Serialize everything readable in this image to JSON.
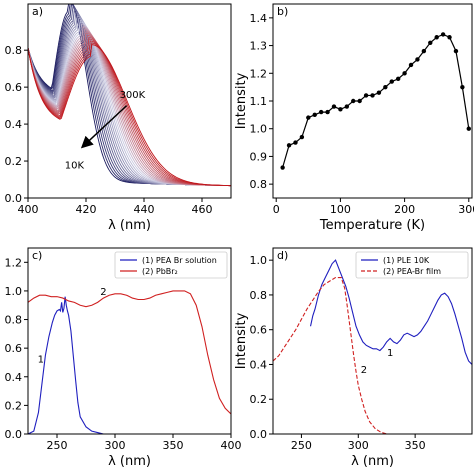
{
  "figure": {
    "background": "#ffffff"
  },
  "chart_data": [
    {
      "panel": "a)",
      "type": "line",
      "xlabel": "λ (nm)",
      "ylabel": "",
      "xlim": [
        400,
        470
      ],
      "ylim": [
        0,
        1.05
      ],
      "xticks": [
        400,
        420,
        440,
        460
      ],
      "yticks": [
        0.0,
        0.2,
        0.4,
        0.6,
        0.8
      ],
      "ytick_labels": [
        "0.0",
        "0.2",
        "0.4",
        "0.6",
        "0.8"
      ],
      "colors": {
        "cold": "#1a1a5e",
        "mid": "#c8c8e0",
        "hot": "#c0151a"
      },
      "series_count": 25,
      "peak_low_temperature": {
        "x": 414,
        "y": 0.98
      },
      "peak_high_temperature": {
        "x": 422,
        "y": 0.74
      },
      "annotations": [
        {
          "text": "300K",
          "x": 436,
          "y": 0.54
        },
        {
          "text": "10K",
          "x": 416,
          "y": 0.16
        }
      ],
      "arrow": {
        "from": {
          "x": 434,
          "y": 0.5
        },
        "to": {
          "x": 419,
          "y": 0.28
        }
      }
    },
    {
      "panel": "b)",
      "type": "line",
      "xlabel": "Temperature (K)",
      "ylabel": "Intensity",
      "xlim": [
        -5,
        305
      ],
      "ylim": [
        0.75,
        1.45
      ],
      "xticks": [
        0,
        100,
        200,
        300
      ],
      "yticks": [
        0.8,
        0.9,
        1.0,
        1.1,
        1.2,
        1.3,
        1.4
      ],
      "ytick_labels": [
        "0.8",
        "0.9",
        "1.0",
        "1.1",
        "1.2",
        "1.3",
        "1.4"
      ],
      "color": "#000000",
      "x": [
        10,
        20,
        30,
        40,
        50,
        60,
        70,
        80,
        90,
        100,
        110,
        120,
        130,
        140,
        150,
        160,
        170,
        180,
        190,
        200,
        210,
        220,
        230,
        240,
        250,
        260,
        270,
        280,
        290,
        300
      ],
      "y": [
        0.86,
        0.94,
        0.95,
        0.97,
        1.04,
        1.05,
        1.06,
        1.06,
        1.08,
        1.07,
        1.08,
        1.1,
        1.1,
        1.12,
        1.12,
        1.13,
        1.15,
        1.17,
        1.18,
        1.2,
        1.23,
        1.25,
        1.28,
        1.31,
        1.33,
        1.34,
        1.33,
        1.28,
        1.15,
        1.0
      ]
    },
    {
      "panel": "c)",
      "type": "line",
      "xlabel": "λ (nm)",
      "ylabel": "",
      "xlim": [
        225,
        400
      ],
      "ylim": [
        0,
        1.3
      ],
      "xticks": [
        250,
        300,
        350,
        400
      ],
      "yticks": [
        0.0,
        0.2,
        0.4,
        0.6,
        0.8,
        1.0,
        1.2
      ],
      "ytick_labels": [
        "0.0",
        "0.2",
        "0.4",
        "0.6",
        "0.8",
        "1.0",
        "1.2"
      ],
      "legend_position": "top-right",
      "series": [
        {
          "name": "(1) PEA Br solution",
          "curve_label": "1",
          "color": "#1f1fbf",
          "label_position": {
            "x": 236,
            "y": 0.5
          },
          "x": [
            225,
            230,
            234,
            237,
            240,
            243,
            246,
            248,
            250,
            252,
            253,
            254,
            255,
            256,
            257,
            258,
            259,
            260,
            262,
            264,
            266,
            268,
            270,
            275,
            280,
            285,
            290,
            300,
            320,
            340,
            360,
            380,
            400
          ],
          "y": [
            0.0,
            0.02,
            0.15,
            0.35,
            0.55,
            0.68,
            0.78,
            0.83,
            0.86,
            0.87,
            0.86,
            0.92,
            0.85,
            0.88,
            0.96,
            0.9,
            0.86,
            0.83,
            0.72,
            0.55,
            0.38,
            0.22,
            0.12,
            0.05,
            0.02,
            0.01,
            0.0,
            0.0,
            0.0,
            0.0,
            0.0,
            0.0,
            0.0
          ]
        },
        {
          "name": "(2) PbBr₂",
          "curve_label": "2",
          "color": "#d02020",
          "label_position": {
            "x": 290,
            "y": 0.97
          },
          "x": [
            225,
            230,
            235,
            240,
            245,
            250,
            255,
            260,
            265,
            270,
            275,
            280,
            285,
            290,
            295,
            300,
            305,
            310,
            315,
            320,
            325,
            330,
            335,
            340,
            345,
            350,
            355,
            360,
            365,
            370,
            375,
            380,
            385,
            390,
            395,
            400
          ],
          "y": [
            0.92,
            0.95,
            0.97,
            0.97,
            0.96,
            0.96,
            0.95,
            0.93,
            0.92,
            0.9,
            0.89,
            0.9,
            0.92,
            0.95,
            0.97,
            0.98,
            0.98,
            0.97,
            0.95,
            0.94,
            0.94,
            0.95,
            0.97,
            0.98,
            0.99,
            1.0,
            1.0,
            1.0,
            0.98,
            0.9,
            0.75,
            0.55,
            0.38,
            0.25,
            0.18,
            0.14
          ]
        }
      ]
    },
    {
      "panel": "d)",
      "type": "line",
      "xlabel": "λ (nm)",
      "ylabel": "Intensity",
      "xlim": [
        225,
        400
      ],
      "ylim": [
        0,
        1.07
      ],
      "xticks": [
        250,
        300,
        350
      ],
      "yticks": [
        0.0,
        0.2,
        0.4,
        0.6,
        0.8,
        1.0
      ],
      "ytick_labels": [
        "0.0",
        "0.2",
        "0.4",
        "0.6",
        "0.8",
        "1.0"
      ],
      "legend_position": "top-right",
      "series": [
        {
          "name": "(1) PLE 10K",
          "curve_label": "1",
          "color": "#1f1fbf",
          "line_style": "solid",
          "label_position": {
            "x": 328,
            "y": 0.45
          },
          "x": [
            258,
            260,
            262,
            265,
            268,
            271,
            274,
            277,
            280,
            283,
            286,
            289,
            292,
            295,
            298,
            301,
            304,
            307,
            310,
            313,
            316,
            319,
            322,
            325,
            328,
            331,
            334,
            337,
            340,
            343,
            346,
            349,
            352,
            355,
            358,
            361,
            364,
            367,
            370,
            373,
            376,
            379,
            382,
            385,
            388,
            391,
            394,
            397,
            400
          ],
          "y": [
            0.62,
            0.68,
            0.72,
            0.8,
            0.86,
            0.9,
            0.94,
            0.98,
            1.0,
            0.95,
            0.9,
            0.85,
            0.78,
            0.7,
            0.62,
            0.57,
            0.53,
            0.51,
            0.5,
            0.49,
            0.49,
            0.48,
            0.5,
            0.53,
            0.55,
            0.53,
            0.52,
            0.54,
            0.57,
            0.58,
            0.57,
            0.56,
            0.57,
            0.59,
            0.62,
            0.65,
            0.69,
            0.73,
            0.77,
            0.8,
            0.81,
            0.79,
            0.75,
            0.69,
            0.62,
            0.55,
            0.47,
            0.42,
            0.4
          ]
        },
        {
          "name": "(2) PEA-Br film",
          "curve_label": "2",
          "color": "#d02020",
          "line_style": "dashed",
          "label_position": {
            "x": 305,
            "y": 0.35
          },
          "x": [
            225,
            230,
            235,
            240,
            245,
            250,
            255,
            260,
            265,
            270,
            275,
            280,
            285,
            288,
            290,
            292,
            294,
            296,
            298,
            300,
            303,
            306,
            310,
            315,
            320,
            325,
            330
          ],
          "y": [
            0.42,
            0.45,
            0.5,
            0.55,
            0.6,
            0.66,
            0.72,
            0.77,
            0.82,
            0.86,
            0.88,
            0.9,
            0.9,
            0.84,
            0.75,
            0.65,
            0.55,
            0.45,
            0.36,
            0.28,
            0.2,
            0.13,
            0.07,
            0.03,
            0.01,
            0.0,
            0.0
          ]
        }
      ]
    }
  ]
}
